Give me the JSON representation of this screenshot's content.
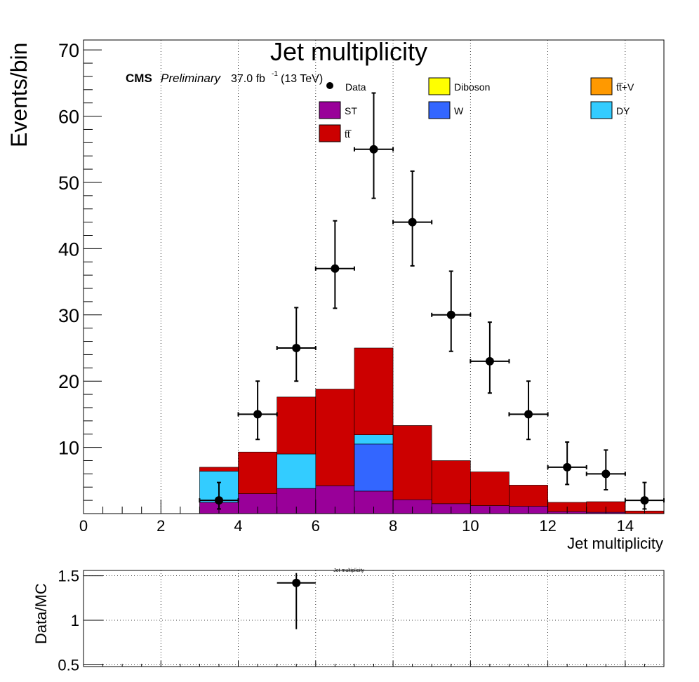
{
  "colors": {
    "data": "#000000",
    "diboson": "#ffff00",
    "ttv": "#ff9900",
    "st": "#990099",
    "w": "#3366ff",
    "dy": "#33ccff",
    "tt": "#cc0000",
    "background": "#ffffff"
  },
  "chart_data": [
    {
      "type": "bar",
      "stacked": true,
      "title": "Jet multiplicity",
      "xlabel": "Jet multiplicity",
      "ylabel": "Events/bin",
      "xlim": [
        0,
        15
      ],
      "ylim": [
        0,
        71.5
      ],
      "x_ticks": [
        0,
        2,
        4,
        6,
        8,
        10,
        12,
        14
      ],
      "y_ticks": [
        10,
        20,
        30,
        40,
        50,
        60,
        70
      ],
      "grid": "vertical dotted",
      "legend_position": "top",
      "cms_label": "CMS",
      "preliminary_label": "Preliminary",
      "lumi_text": "37.0 fb",
      "lumi_exp": "-1",
      "energy_text": "(13 TeV)",
      "bin_edges": [
        3,
        4,
        5,
        6,
        7,
        8,
        9,
        10,
        11,
        12,
        13,
        14,
        15
      ],
      "series": [
        {
          "name": "ST",
          "color_key": "st",
          "values": [
            1.7,
            3.0,
            3.8,
            4.2,
            3.4,
            2.1,
            1.5,
            1.2,
            1.1,
            0.3,
            0.2,
            0.0
          ]
        },
        {
          "name": "W",
          "color_key": "w",
          "values": [
            0.0,
            0.0,
            0.0,
            0.0,
            7.1,
            0.0,
            0.0,
            0.0,
            0.0,
            0.0,
            0.0,
            0.0
          ]
        },
        {
          "name": "DY",
          "color_key": "dy",
          "values": [
            4.7,
            0.0,
            5.2,
            0.0,
            1.4,
            0.0,
            0.0,
            0.0,
            0.0,
            0.0,
            0.0,
            0.0
          ]
        },
        {
          "name": "tt",
          "color_key": "tt",
          "values": [
            0.6,
            6.3,
            8.6,
            14.6,
            13.1,
            11.2,
            6.5,
            5.1,
            3.2,
            1.4,
            1.6,
            0.4
          ]
        },
        {
          "name": "Diboson",
          "color_key": "diboson",
          "values": [
            0,
            0,
            0,
            0,
            0,
            0,
            0,
            0,
            0,
            0,
            0,
            0
          ]
        },
        {
          "name": "tt+V",
          "color_key": "ttv",
          "values": [
            0,
            0,
            0,
            0,
            0,
            0,
            0,
            0,
            0,
            0,
            0,
            0
          ]
        }
      ],
      "data_points": {
        "name": "Data",
        "x": [
          3.5,
          4.5,
          5.5,
          6.5,
          7.5,
          8.5,
          9.5,
          10.5,
          11.5,
          12.5,
          13.5,
          14.5
        ],
        "y": [
          2,
          15,
          25,
          37,
          55,
          44,
          30,
          23,
          15,
          7,
          6,
          2
        ],
        "err_low": [
          1.3,
          3.8,
          5.0,
          6.0,
          7.4,
          6.6,
          5.5,
          4.8,
          3.8,
          2.6,
          2.4,
          1.3
        ],
        "err_high": [
          2.7,
          5.0,
          6.1,
          7.2,
          8.5,
          7.7,
          6.6,
          5.9,
          5.0,
          3.8,
          3.6,
          2.7
        ],
        "x_err": 0.5
      },
      "legend": [
        {
          "label": "Data",
          "kind": "marker",
          "color_key": "data"
        },
        {
          "label": "Diboson",
          "kind": "box",
          "color_key": "diboson"
        },
        {
          "label": "tt̅+V",
          "kind": "box",
          "color_key": "ttv"
        },
        {
          "label": "ST",
          "kind": "box",
          "color_key": "st"
        },
        {
          "label": "W",
          "kind": "box",
          "color_key": "w"
        },
        {
          "label": "DY",
          "kind": "box",
          "color_key": "dy"
        },
        {
          "label": "tt̅",
          "kind": "box",
          "color_key": "tt"
        }
      ]
    },
    {
      "type": "scatter",
      "title": "Jet multiplicity",
      "xlabel": "",
      "ylabel": "Data/MC",
      "xlim": [
        0,
        15
      ],
      "ylim": [
        0.48,
        1.56
      ],
      "y_ticks": [
        0.5,
        1,
        1.5
      ],
      "y_tick_labels": [
        "0.5",
        "1",
        "1.5"
      ],
      "grid": "dotted",
      "points": [
        {
          "x": 5.5,
          "y": 1.42,
          "err_low": 0.52,
          "err_high": 0.11,
          "x_err": 0.5
        }
      ]
    }
  ]
}
